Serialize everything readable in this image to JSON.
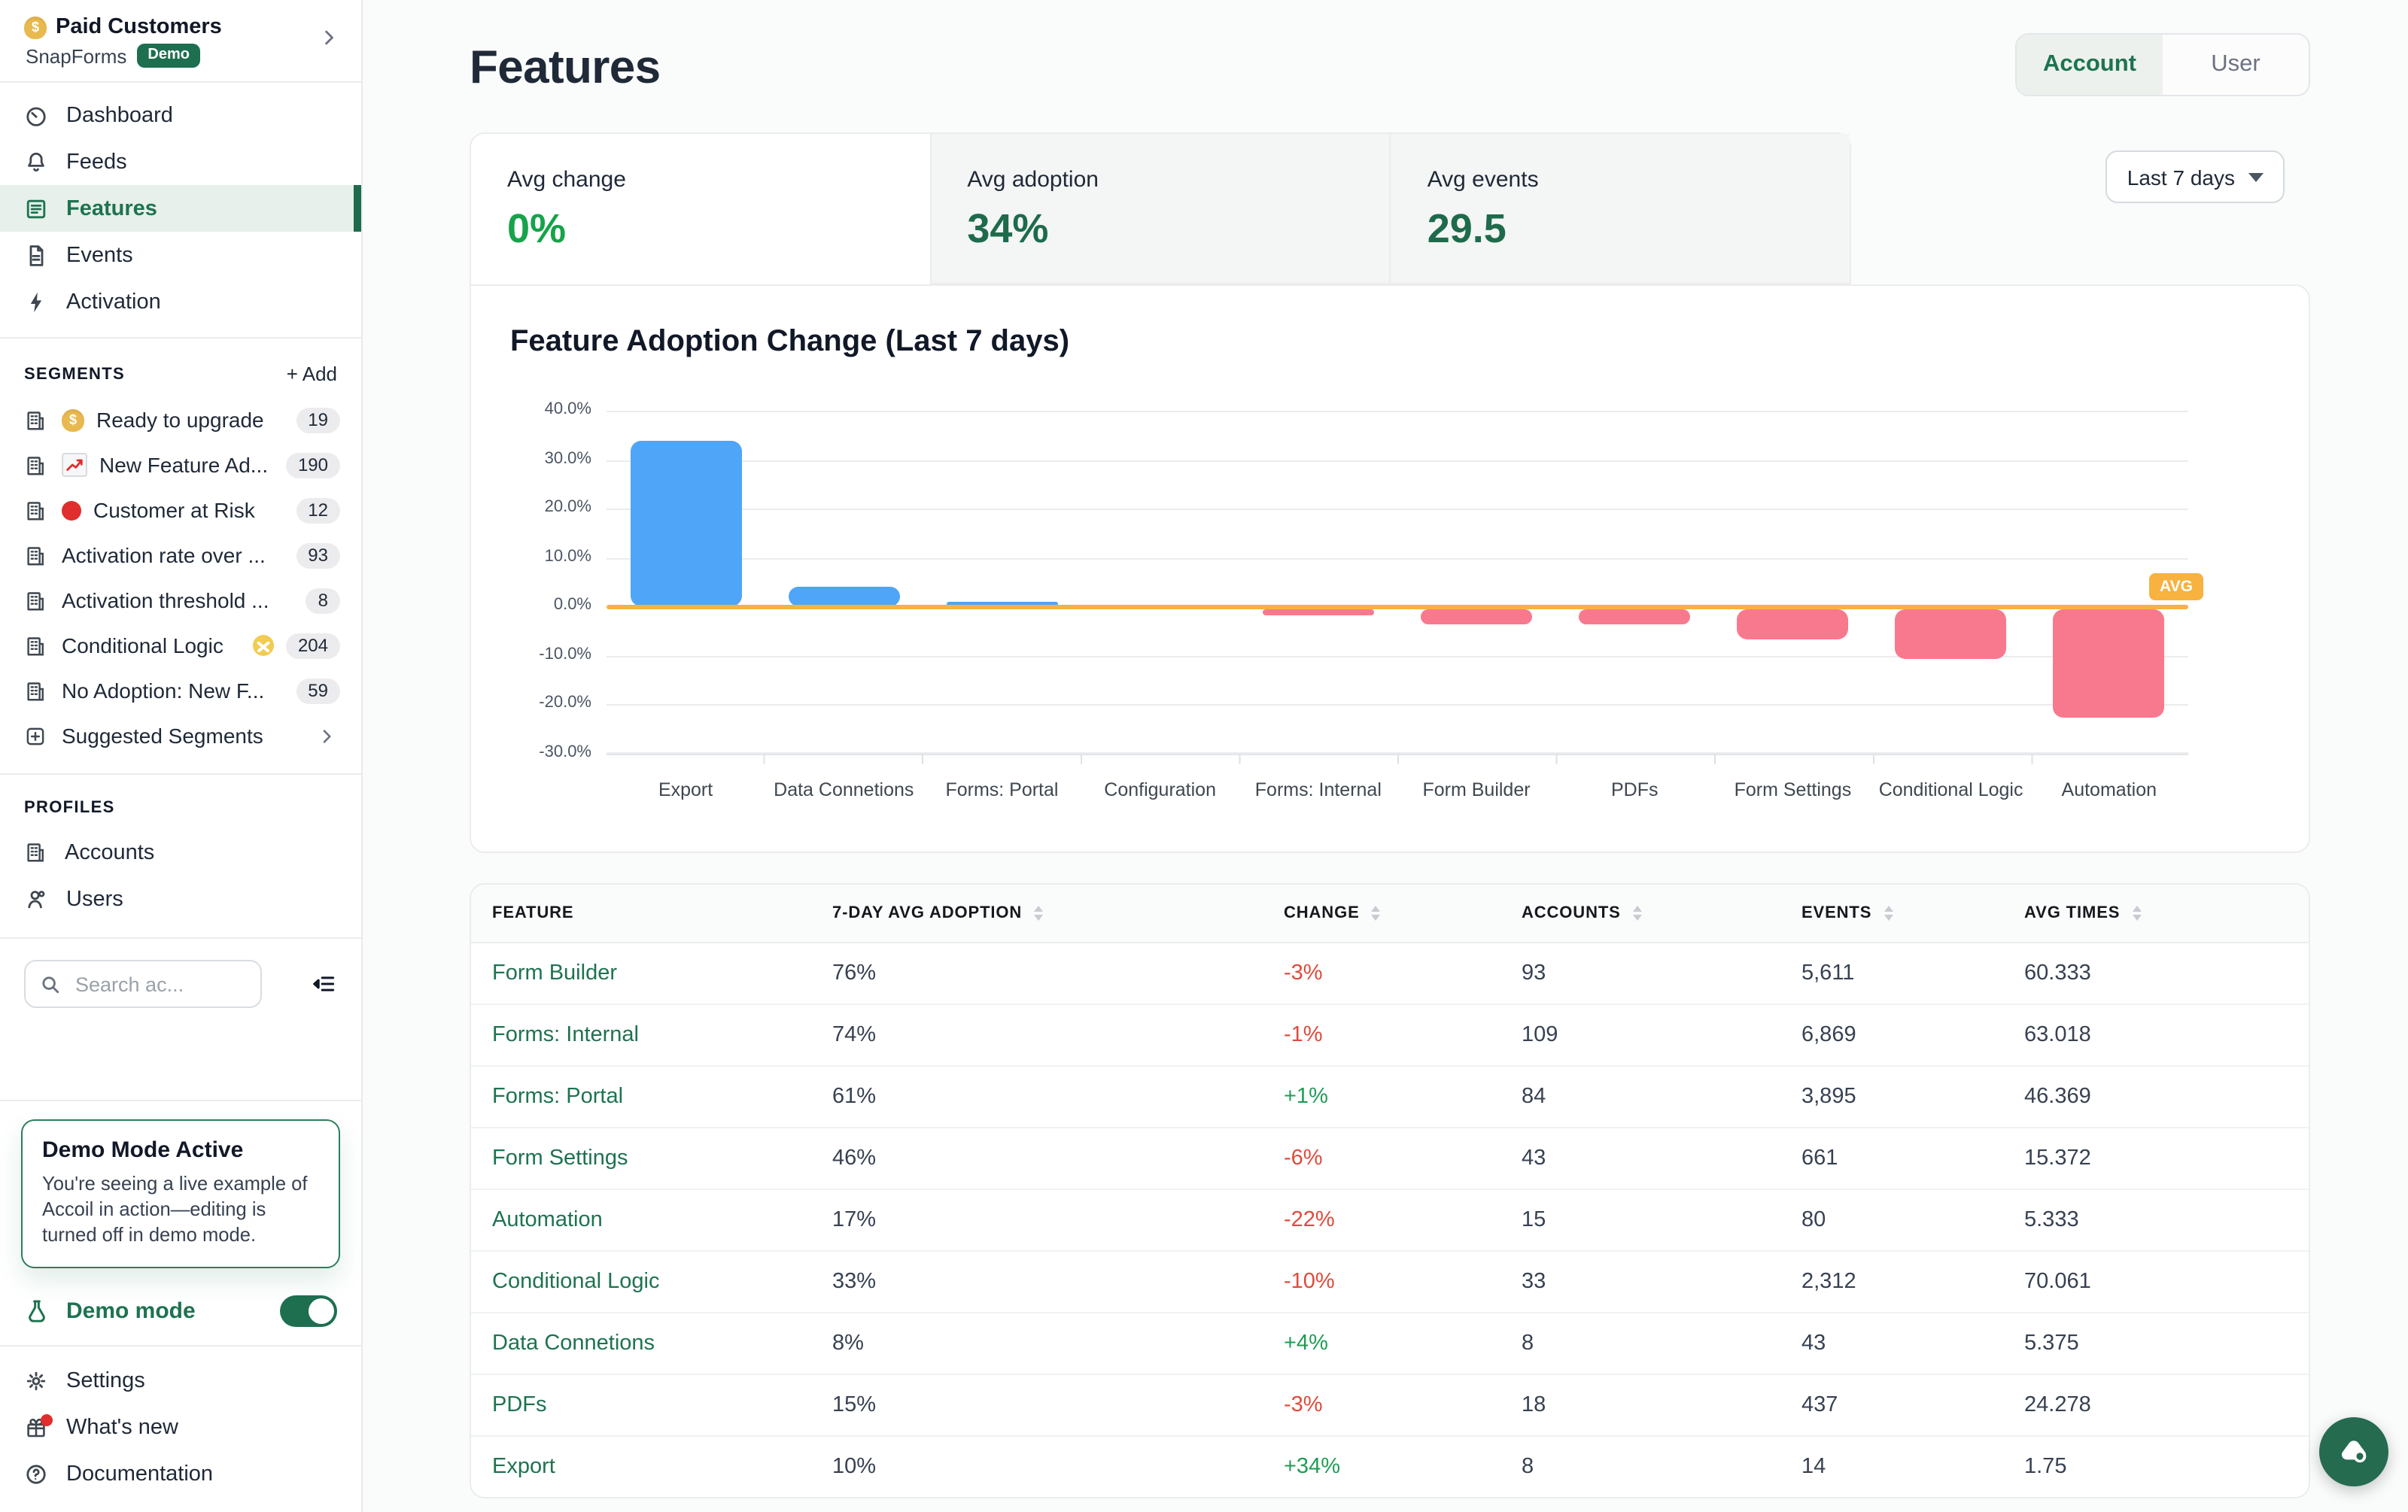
{
  "workspace": {
    "name": "Paid Customers",
    "name_icon": "money-bag",
    "org": "SnapForms",
    "badge": "Demo"
  },
  "sidebar": {
    "nav": [
      {
        "icon": "gauge-icon",
        "label": "Dashboard",
        "active": false
      },
      {
        "icon": "bell-icon",
        "label": "Feeds",
        "active": false
      },
      {
        "icon": "form-icon",
        "label": "Features",
        "active": true
      },
      {
        "icon": "file-icon",
        "label": "Events",
        "active": false
      },
      {
        "icon": "bolt-icon",
        "label": "Activation",
        "active": false
      }
    ],
    "segments": {
      "title": "SEGMENTS",
      "add_label": "+ Add",
      "items": [
        {
          "emoji": "money-bag",
          "label": "Ready to upgrade",
          "count": "19"
        },
        {
          "emoji": "chart-up",
          "label": "New Feature Ad...",
          "count": "190"
        },
        {
          "emoji": "red-circle",
          "label": "Customer at Risk",
          "count": "12"
        },
        {
          "emoji": "",
          "label": "Activation rate over ...",
          "count": "93"
        },
        {
          "emoji": "",
          "label": "Activation threshold ...",
          "count": "8"
        },
        {
          "emoji": "person-no-after",
          "label": "Conditional Logic",
          "count": "204"
        },
        {
          "emoji": "",
          "label": "No Adoption: New F...",
          "count": "59"
        }
      ],
      "suggested_label": "Suggested Segments"
    },
    "profiles": {
      "title": "PROFILES",
      "items": [
        {
          "icon": "building-icon",
          "label": "Accounts"
        },
        {
          "icon": "user-icon",
          "label": "Users"
        }
      ]
    },
    "search": {
      "placeholder": "Search ac..."
    },
    "demo_box": {
      "title": "Demo Mode Active",
      "body": "You're seeing a live example of Accoil in action—editing is turned off in demo mode."
    },
    "demo_mode": {
      "label": "Demo mode",
      "enabled": true
    },
    "footer": [
      {
        "icon": "gear-icon",
        "label": "Settings",
        "dot": false
      },
      {
        "icon": "gift-icon",
        "label": "What's new",
        "dot": true
      },
      {
        "icon": "help-icon",
        "label": "Documentation",
        "dot": false
      }
    ]
  },
  "header": {
    "title": "Features",
    "view_toggle": {
      "options": [
        "Account",
        "User"
      ],
      "active": "Account"
    },
    "range_label": "Last 7 days"
  },
  "stats": [
    {
      "label": "Avg change",
      "value": "0%",
      "active": true
    },
    {
      "label": "Avg adoption",
      "value": "34%",
      "active": false
    },
    {
      "label": "Avg events",
      "value": "29.5",
      "active": false
    }
  ],
  "chart_data": {
    "type": "bar",
    "title": "Feature Adoption Change (Last 7 days)",
    "categories": [
      "Export",
      "Data Connetions",
      "Forms: Portal",
      "Configuration",
      "Forms: Internal",
      "Form Builder",
      "PDFs",
      "Form Settings",
      "Conditional Logic",
      "Automation"
    ],
    "values": [
      34,
      4,
      1,
      0,
      -1,
      -3,
      -3,
      -6,
      -10,
      -22
    ],
    "unit": "percent",
    "ylim": [
      -30,
      40
    ],
    "ytick_labels": [
      "40.0%",
      "30.0%",
      "20.0%",
      "10.0%",
      "0.0%",
      "-10.0%",
      "-20.0%",
      "-30.0%"
    ],
    "grid": true,
    "legend": "none",
    "avg_line": {
      "value": 0,
      "label": "AVG"
    },
    "positive_color": "#4fa5f7",
    "negative_color": "#f8798e",
    "avg_color": "#f7b23f"
  },
  "table": {
    "columns": [
      {
        "label": "FEATURE",
        "sortable": false
      },
      {
        "label": "7-DAY AVG ADOPTION",
        "sortable": true
      },
      {
        "label": "CHANGE",
        "sortable": true
      },
      {
        "label": "ACCOUNTS",
        "sortable": true
      },
      {
        "label": "EVENTS",
        "sortable": true
      },
      {
        "label": "AVG TIMES",
        "sortable": true
      }
    ],
    "rows": [
      {
        "feature": "Form Builder",
        "adoption": "76%",
        "change": "-3%",
        "accounts": "93",
        "events": "5,611",
        "avg_times": "60.333"
      },
      {
        "feature": "Forms: Internal",
        "adoption": "74%",
        "change": "-1%",
        "accounts": "109",
        "events": "6,869",
        "avg_times": "63.018"
      },
      {
        "feature": "Forms: Portal",
        "adoption": "61%",
        "change": "+1%",
        "accounts": "84",
        "events": "3,895",
        "avg_times": "46.369"
      },
      {
        "feature": "Form Settings",
        "adoption": "46%",
        "change": "-6%",
        "accounts": "43",
        "events": "661",
        "avg_times": "15.372"
      },
      {
        "feature": "Automation",
        "adoption": "17%",
        "change": "-22%",
        "accounts": "15",
        "events": "80",
        "avg_times": "5.333"
      },
      {
        "feature": "Conditional Logic",
        "adoption": "33%",
        "change": "-10%",
        "accounts": "33",
        "events": "2,312",
        "avg_times": "70.061"
      },
      {
        "feature": "Data Connetions",
        "adoption": "8%",
        "change": "+4%",
        "accounts": "8",
        "events": "43",
        "avg_times": "5.375"
      },
      {
        "feature": "PDFs",
        "adoption": "15%",
        "change": "-3%",
        "accounts": "18",
        "events": "437",
        "avg_times": "24.278"
      },
      {
        "feature": "Export",
        "adoption": "10%",
        "change": "+34%",
        "accounts": "8",
        "events": "14",
        "avg_times": "1.75"
      }
    ]
  },
  "colors": {
    "accent_green": "#1e7350",
    "badge_green": "#1d6f4f",
    "positive_text": "#1f9d55",
    "negative_text": "#df4b3b",
    "stat_active_green": "#16a34a",
    "stat_dark_green": "#1e6b4b"
  }
}
